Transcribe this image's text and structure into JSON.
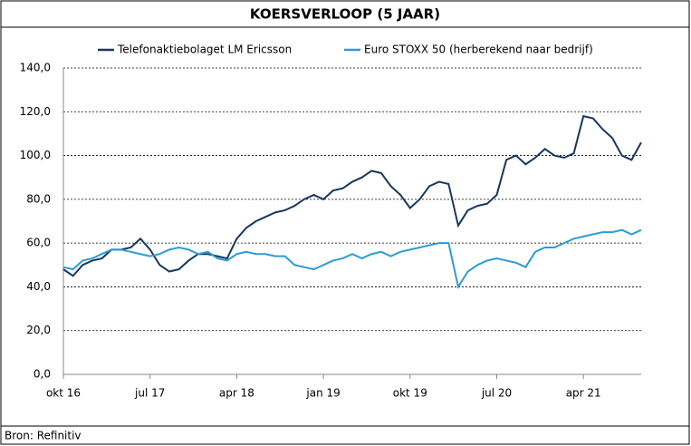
{
  "chart_data": {
    "type": "line",
    "title": "KOERSVERLOOP (5 JAAR)",
    "source": "Bron: Refinitiv",
    "categories": [
      "okt 16",
      null,
      null,
      null,
      null,
      null,
      null,
      null,
      null,
      "jul 17",
      null,
      null,
      null,
      null,
      null,
      null,
      null,
      null,
      "apr 18",
      null,
      null,
      null,
      null,
      null,
      null,
      null,
      null,
      "jan 19",
      null,
      null,
      null,
      null,
      null,
      null,
      null,
      null,
      "okt 19",
      null,
      null,
      null,
      null,
      null,
      null,
      null,
      null,
      "jul 20",
      null,
      null,
      null,
      null,
      null,
      null,
      null,
      null,
      "apr 21",
      null,
      null,
      null,
      null,
      null,
      null
    ],
    "series": [
      {
        "name": "Telefonaktiebolaget LM Ericsson",
        "color": "#17375e",
        "values": [
          48,
          45,
          50,
          52,
          53,
          57,
          57,
          58,
          62,
          57,
          50,
          47,
          48,
          52,
          55,
          55,
          54,
          53,
          62,
          67,
          70,
          72,
          74,
          75,
          77,
          80,
          82,
          80,
          84,
          85,
          88,
          90,
          93,
          92,
          86,
          82,
          76,
          80,
          86,
          88,
          87,
          68,
          75,
          77,
          78,
          82,
          98,
          100,
          96,
          99,
          103,
          100,
          99,
          101,
          118,
          117,
          112,
          108,
          100,
          98,
          106
        ]
      },
      {
        "name": "Euro STOXX 50 (herberekend naar bedrijf)",
        "color": "#2e9bd6",
        "values": [
          49,
          48,
          52,
          53,
          55,
          57,
          57,
          56,
          55,
          54,
          55,
          57,
          58,
          57,
          55,
          56,
          53,
          52,
          55,
          56,
          55,
          55,
          54,
          54,
          50,
          49,
          48,
          50,
          52,
          53,
          55,
          53,
          55,
          56,
          54,
          56,
          57,
          58,
          59,
          60,
          60,
          40,
          47,
          50,
          52,
          53,
          52,
          51,
          49,
          56,
          58,
          58,
          60,
          62,
          63,
          64,
          65,
          65,
          66,
          64,
          66
        ]
      }
    ],
    "ylim": [
      0,
      140
    ],
    "yticks": [
      {
        "value": 0,
        "label": "0,0"
      },
      {
        "value": 20,
        "label": "20,0"
      },
      {
        "value": 40,
        "label": "40,0"
      },
      {
        "value": 60,
        "label": "60,0"
      },
      {
        "value": 80,
        "label": "80,0"
      },
      {
        "value": 100,
        "label": "100,0"
      },
      {
        "value": 120,
        "label": "120,0"
      },
      {
        "value": 140,
        "label": "140,0"
      }
    ],
    "grid": true,
    "legend": "top"
  }
}
